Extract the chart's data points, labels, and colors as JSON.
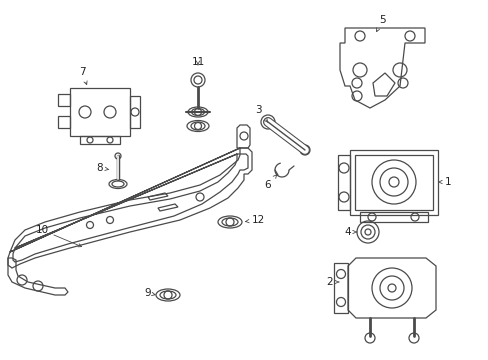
{
  "bg_color": "#ffffff",
  "line_color": "#4a4a4a",
  "text_color": "#222222",
  "figsize": [
    4.89,
    3.6
  ],
  "dpi": 100,
  "lw": 0.9
}
